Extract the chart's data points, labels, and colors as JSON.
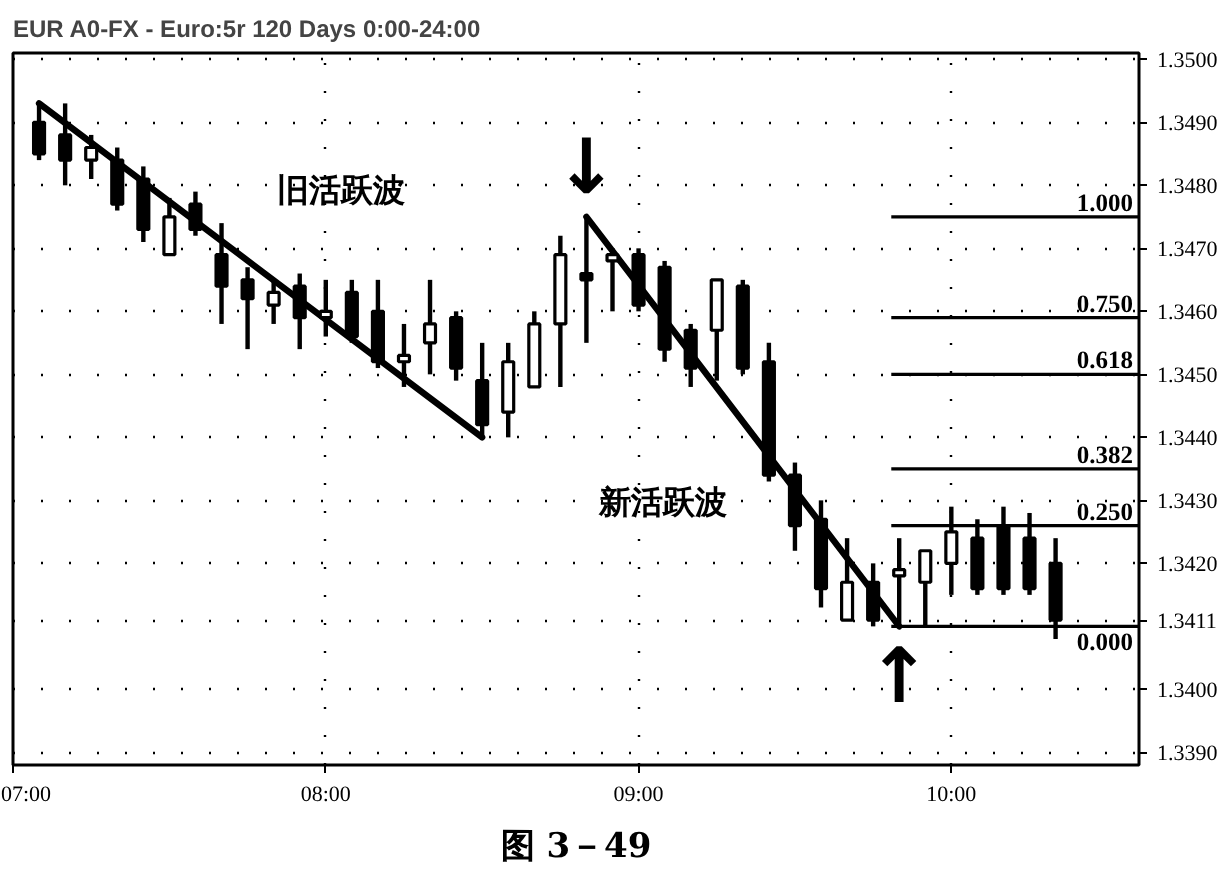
{
  "chart_data": {
    "type": "candlestick",
    "title": "EUR A0-FX - Euro:5r 120 Days 0:00-24:00",
    "color": "#000000",
    "x": [
      7.0833,
      7.1667,
      7.25,
      7.3333,
      7.4167,
      7.5,
      7.5833,
      7.6667,
      7.75,
      7.8333,
      7.9167,
      8.0,
      8.0833,
      8.1667,
      8.25,
      8.3333,
      8.4167,
      8.5,
      8.5833,
      8.6667,
      8.75,
      8.8333,
      8.9167,
      9.0,
      9.0833,
      9.1667,
      9.25,
      9.3333,
      9.4167,
      9.5,
      9.5833,
      9.6667,
      9.75,
      9.8333,
      9.9167,
      10.0,
      10.0833,
      10.1667,
      10.25,
      10.3333
    ],
    "ohlc": [
      [
        1.349,
        1.3493,
        1.3484,
        1.3485
      ],
      [
        1.3488,
        1.3493,
        1.348,
        1.3484
      ],
      [
        1.3484,
        1.3488,
        1.3481,
        1.3486
      ],
      [
        1.3484,
        1.3486,
        1.3476,
        1.3477
      ],
      [
        1.3481,
        1.3483,
        1.3471,
        1.3473
      ],
      [
        1.3469,
        1.3478,
        1.3469,
        1.3475
      ],
      [
        1.3477,
        1.3479,
        1.3472,
        1.3473
      ],
      [
        1.3469,
        1.3474,
        1.3458,
        1.3464
      ],
      [
        1.3465,
        1.3467,
        1.3454,
        1.3462
      ],
      [
        1.3461,
        1.3465,
        1.3458,
        1.3463
      ],
      [
        1.3464,
        1.3466,
        1.3454,
        1.3459
      ],
      [
        1.3459,
        1.3465,
        1.3456,
        1.346
      ],
      [
        1.3463,
        1.3465,
        1.3455,
        1.3456
      ],
      [
        1.346,
        1.3465,
        1.3451,
        1.3452
      ],
      [
        1.3452,
        1.3458,
        1.3448,
        1.3453
      ],
      [
        1.3455,
        1.3465,
        1.345,
        1.3458
      ],
      [
        1.3459,
        1.346,
        1.3449,
        1.3451
      ],
      [
        1.3449,
        1.3455,
        1.344,
        1.3442
      ],
      [
        1.3444,
        1.3455,
        1.344,
        1.3452
      ],
      [
        1.3448,
        1.346,
        1.3448,
        1.3458
      ],
      [
        1.3458,
        1.3472,
        1.3448,
        1.3469
      ],
      [
        1.3466,
        1.3475,
        1.3455,
        1.3465
      ],
      [
        1.3468,
        1.347,
        1.346,
        1.3469
      ],
      [
        1.3469,
        1.347,
        1.346,
        1.3461
      ],
      [
        1.3467,
        1.3468,
        1.3452,
        1.3454
      ],
      [
        1.3457,
        1.3458,
        1.3448,
        1.3451
      ],
      [
        1.3457,
        1.3465,
        1.3449,
        1.3465
      ],
      [
        1.3464,
        1.3465,
        1.345,
        1.3451
      ],
      [
        1.3452,
        1.3455,
        1.3433,
        1.3434
      ],
      [
        1.3434,
        1.3436,
        1.3422,
        1.3426
      ],
      [
        1.3427,
        1.343,
        1.3413,
        1.3416
      ],
      [
        1.3411,
        1.3424,
        1.3411,
        1.3417
      ],
      [
        1.3417,
        1.342,
        1.341,
        1.3411
      ],
      [
        1.3418,
        1.3424,
        1.341,
        1.3419
      ],
      [
        1.3417,
        1.3422,
        1.341,
        1.3422
      ],
      [
        1.342,
        1.3429,
        1.3415,
        1.3425
      ],
      [
        1.3424,
        1.3427,
        1.3415,
        1.3416
      ],
      [
        1.3426,
        1.3429,
        1.3415,
        1.3416
      ],
      [
        1.3424,
        1.3428,
        1.3415,
        1.3416
      ],
      [
        1.342,
        1.3424,
        1.3408,
        1.3411
      ]
    ],
    "series": [
      {
        "type": "line",
        "name": "旧活跃波",
        "color": "#000000",
        "x": [
          7.0833,
          8.5
        ],
        "values": [
          1.3493,
          1.344
        ]
      },
      {
        "type": "line",
        "name": "新活跃波",
        "color": "#000000",
        "x": [
          8.8333,
          9.8333
        ],
        "values": [
          1.3475,
          1.341
        ]
      }
    ],
    "ref_lines": [
      {
        "axis": "y",
        "value": 1.3475,
        "color": "#000000"
      },
      {
        "axis": "y",
        "value": 1.3459,
        "color": "#000000"
      },
      {
        "axis": "y",
        "value": 1.345,
        "color": "#000000"
      },
      {
        "axis": "y",
        "value": 1.3435,
        "color": "#000000"
      },
      {
        "axis": "y",
        "value": 1.3426,
        "color": "#000000"
      },
      {
        "axis": "y",
        "value": 1.341,
        "color": "#000000"
      }
    ],
    "annotations": [
      {
        "text": "↓",
        "x": 8.8333,
        "y": 1.3475
      },
      {
        "text": "↑",
        "x": 9.8333,
        "y": 1.341
      },
      {
        "text": "1.000",
        "x": 10.6,
        "y": 1.3475
      },
      {
        "text": "0.750",
        "x": 10.6,
        "y": 1.3459
      },
      {
        "text": "0.618",
        "x": 10.6,
        "y": 1.345
      },
      {
        "text": "0.382",
        "x": 10.6,
        "y": 1.3435
      },
      {
        "text": "0.250",
        "x": 10.6,
        "y": 1.3426
      },
      {
        "text": "0.000",
        "x": 10.6,
        "y": 1.341
      },
      "图 3－49"
    ],
    "xlim": [
      7.0,
      10.6
    ],
    "ylim": [
      1.3388,
      1.3501
    ],
    "xticks": [
      {
        "value": 7,
        "label": "07:00"
      },
      {
        "value": 8,
        "label": "08:00"
      },
      {
        "value": 9,
        "label": "09:00"
      },
      {
        "value": 10,
        "label": "10:00"
      }
    ],
    "yticks": [
      {
        "value": 1.339,
        "label": "1.3390"
      },
      {
        "value": 1.34,
        "label": "1.3400"
      },
      1.3411,
      {
        "value": 1.342,
        "label": "1.3420"
      },
      {
        "value": 1.343,
        "label": "1.3430"
      },
      {
        "value": 1.344,
        "label": "1.3440"
      },
      {
        "value": 1.345,
        "label": "1.3450"
      },
      {
        "value": 1.346,
        "label": "1.3460"
      },
      {
        "value": 1.347,
        "label": "1.3470"
      },
      {
        "value": 1.348,
        "label": "1.3480"
      },
      {
        "value": 1.349,
        "label": "1.3490"
      },
      {
        "value": 1.35,
        "label": "1.3500"
      }
    ],
    "grid": true
  }
}
